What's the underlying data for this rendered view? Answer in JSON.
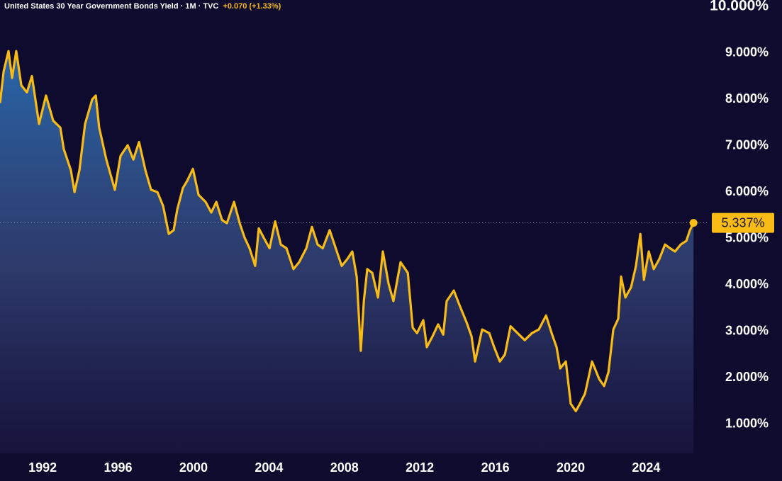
{
  "chart_data": {
    "type": "area",
    "title": "United States 30 Year Government Bonds Yield · 1M · TVC",
    "change": "+0.070 (+1.33%)",
    "current_label": "5.337%",
    "line_color": "#f9bc15",
    "x": [
      1989.74,
      1989.93,
      1990.19,
      1990.38,
      1990.6,
      1990.87,
      1991.17,
      1991.43,
      1991.81,
      1992.18,
      1992.56,
      1992.94,
      1993.12,
      1993.5,
      1993.69,
      1993.95,
      1994.25,
      1994.63,
      1994.82,
      1995.0,
      1995.38,
      1995.83,
      1996.13,
      1996.51,
      1996.81,
      1997.11,
      1997.45,
      1997.75,
      1998.09,
      1998.39,
      1998.69,
      1998.95,
      1999.14,
      1999.44,
      1999.66,
      1999.97,
      2000.27,
      2000.64,
      2000.94,
      2001.21,
      2001.51,
      2001.77,
      2002.15,
      2002.45,
      2002.71,
      2002.97,
      2003.27,
      2003.46,
      2003.72,
      2004.03,
      2004.33,
      2004.63,
      2004.93,
      2005.3,
      2005.6,
      2005.98,
      2006.28,
      2006.58,
      2006.85,
      2007.22,
      2007.6,
      2007.86,
      2008.16,
      2008.42,
      2008.65,
      2008.87,
      2009.03,
      2009.21,
      2009.48,
      2009.78,
      2010.04,
      2010.34,
      2010.6,
      2010.98,
      2011.36,
      2011.62,
      2011.85,
      2012.18,
      2012.37,
      2012.67,
      2012.97,
      2013.24,
      2013.42,
      2013.8,
      2014.1,
      2014.48,
      2014.74,
      2014.93,
      2015.3,
      2015.68,
      2015.94,
      2016.24,
      2016.51,
      2016.81,
      2017.18,
      2017.56,
      2017.94,
      2018.31,
      2018.69,
      2018.99,
      2019.25,
      2019.44,
      2019.74,
      2020.0,
      2020.27,
      2020.49,
      2020.76,
      2021.13,
      2021.51,
      2021.77,
      2022.0,
      2022.26,
      2022.52,
      2022.67,
      2022.9,
      2023.2,
      2023.46,
      2023.69,
      2023.88,
      2024.14,
      2024.4,
      2024.7,
      2025.0,
      2025.27,
      2025.53,
      2025.83,
      2026.13,
      2026.32,
      2026.51
    ],
    "values": [
      7.92,
      8.6,
      9.04,
      8.46,
      9.04,
      8.3,
      8.15,
      8.5,
      7.47,
      8.08,
      7.54,
      7.39,
      6.93,
      6.47,
      6.0,
      6.47,
      7.47,
      8.0,
      8.08,
      7.39,
      6.7,
      6.05,
      6.78,
      7.01,
      6.7,
      7.08,
      6.47,
      6.05,
      6.0,
      5.7,
      5.1,
      5.18,
      5.63,
      6.09,
      6.24,
      6.5,
      5.94,
      5.79,
      5.56,
      5.79,
      5.4,
      5.33,
      5.79,
      5.33,
      5.02,
      4.79,
      4.41,
      5.22,
      5.02,
      4.79,
      5.37,
      4.87,
      4.79,
      4.34,
      4.49,
      4.79,
      5.25,
      4.87,
      4.79,
      5.18,
      4.72,
      4.41,
      4.56,
      4.72,
      4.18,
      2.58,
      3.65,
      4.34,
      4.26,
      3.73,
      4.72,
      4.03,
      3.65,
      4.49,
      4.26,
      3.08,
      2.96,
      3.24,
      2.66,
      2.89,
      3.15,
      2.93,
      3.65,
      3.88,
      3.57,
      3.19,
      2.89,
      2.35,
      3.04,
      2.96,
      2.66,
      2.35,
      2.5,
      3.11,
      2.96,
      2.81,
      2.96,
      3.04,
      3.34,
      2.96,
      2.66,
      2.2,
      2.35,
      1.44,
      1.28,
      1.44,
      1.66,
      2.35,
      1.97,
      1.82,
      2.12,
      3.04,
      3.27,
      4.18,
      3.73,
      3.95,
      4.41,
      5.1,
      4.11,
      4.72,
      4.34,
      4.56,
      4.87,
      4.79,
      4.72,
      4.87,
      4.95,
      5.18,
      5.337
    ],
    "xlim": [
      1989.74,
      2027.33
    ],
    "xticks": [
      1992,
      1996,
      2000,
      2004,
      2008,
      2012,
      2016,
      2020,
      2024
    ],
    "ylim": [
      0.37,
      10.14
    ],
    "yticks": [
      {
        "value": 1,
        "label": "1.000%"
      },
      {
        "value": 2,
        "label": "2.000%"
      },
      {
        "value": 3,
        "label": "3.000%"
      },
      {
        "value": 4,
        "label": "4.000%"
      },
      {
        "value": 5,
        "label": "5.000%"
      },
      {
        "value": 6,
        "label": "6.000%"
      },
      {
        "value": 7,
        "label": "7.000%"
      },
      {
        "value": 8,
        "label": "8.000%"
      },
      {
        "value": 9,
        "label": "9.000%"
      },
      {
        "value": 10,
        "label": "10.000%"
      }
    ]
  }
}
